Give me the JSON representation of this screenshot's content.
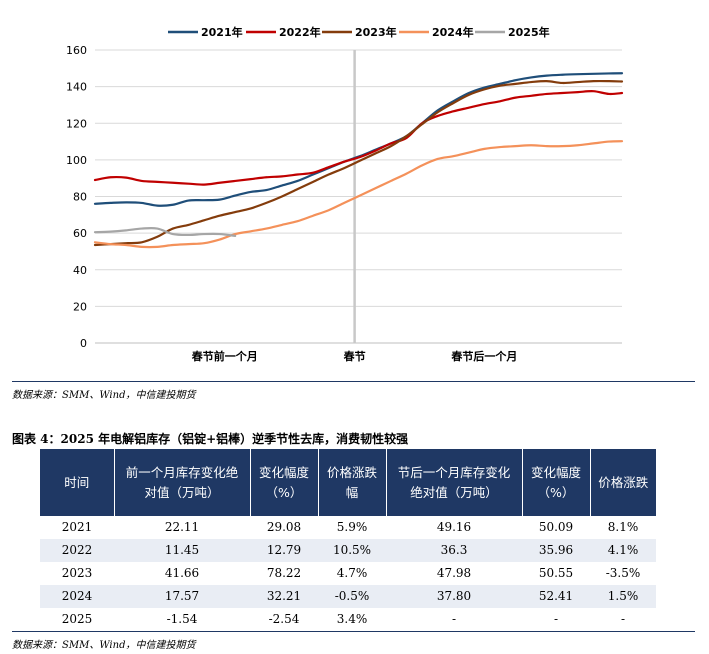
{
  "chart_data": {
    "type": "line",
    "x_labels": [
      "春节前一个月",
      "春节",
      "春节后一个月"
    ],
    "ylim": [
      0,
      160
    ],
    "yticks": [
      0,
      20,
      40,
      60,
      80,
      100,
      120,
      140,
      160
    ],
    "grid": "horizontal",
    "legend_position": "top",
    "x_note": "20 evenly spaced observations; index 0 = start of 春节前一个月, index 10 = 春节, index 20 = end of 春节后一个月",
    "series": [
      {
        "name": "2021年",
        "color": "#1f4e79",
        "x": [
          0,
          0.6,
          1.2,
          1.8,
          2.4,
          3,
          3.6,
          4.2,
          4.8,
          5.4,
          6,
          6.6,
          7.2,
          7.8,
          8.4,
          9,
          9.6,
          10.2,
          10.8,
          11.4,
          12,
          12.6,
          13.2,
          13.8,
          14.4,
          15,
          15.6,
          16.2,
          16.8,
          17.4,
          18,
          18.6,
          19.2,
          19.8,
          20.3
        ],
        "y": [
          76,
          76.5,
          76.8,
          76.5,
          75,
          75.5,
          77.8,
          78,
          78.3,
          80.5,
          82.5,
          83.5,
          86,
          88.5,
          92,
          95.5,
          99,
          102,
          105.5,
          109,
          113,
          120,
          127,
          132,
          136.5,
          139.5,
          141.5,
          143.5,
          145,
          146,
          146.5,
          146.8,
          147,
          147.2,
          147.3
        ]
      },
      {
        "name": "2022年",
        "color": "#c00000",
        "x": [
          0,
          0.6,
          1.2,
          1.8,
          2.4,
          3,
          3.6,
          4.2,
          4.8,
          5.4,
          6,
          6.6,
          7.2,
          7.8,
          8.4,
          9,
          9.6,
          10.2,
          10.8,
          11.4,
          12,
          12.6,
          13.2,
          13.8,
          14.4,
          15,
          15.6,
          16.2,
          16.8,
          17.4,
          18,
          18.6,
          19.2,
          19.8,
          20.3
        ],
        "y": [
          89,
          90.5,
          90.3,
          88.5,
          88,
          87.5,
          87,
          86.5,
          87.5,
          88.5,
          89.5,
          90.5,
          91,
          92,
          93,
          96,
          99,
          101.5,
          105,
          109,
          112,
          120,
          124,
          126.5,
          128.5,
          130.5,
          132,
          134,
          135,
          136,
          136.5,
          137,
          137.5,
          136,
          136.5
        ]
      },
      {
        "name": "2023年",
        "color": "#843c0c",
        "x": [
          0,
          0.6,
          1.2,
          1.8,
          2.4,
          3,
          3.6,
          4.2,
          4.8,
          5.4,
          6,
          6.6,
          7.2,
          7.8,
          8.4,
          9,
          9.6,
          10.2,
          10.8,
          11.4,
          12,
          12.6,
          13.2,
          13.8,
          14.4,
          15,
          15.6,
          16.2,
          16.8,
          17.4,
          18,
          18.6,
          19.2,
          19.8,
          20.3
        ],
        "y": [
          53.5,
          54,
          54.5,
          55,
          58,
          62.5,
          64.5,
          67,
          69.5,
          71.5,
          73.5,
          76.5,
          80,
          84,
          88,
          92,
          95.5,
          99.5,
          103.5,
          107.5,
          113,
          119.5,
          126,
          131,
          135.5,
          138.5,
          140.5,
          141.5,
          142.5,
          143,
          142,
          142.5,
          143,
          143,
          142.8
        ]
      },
      {
        "name": "2024年",
        "color": "#f4915a",
        "x": [
          0,
          0.6,
          1.2,
          1.8,
          2.4,
          3,
          3.6,
          4.2,
          4.8,
          5.4,
          6,
          6.6,
          7.2,
          7.8,
          8.4,
          9,
          9.6,
          10.2,
          10.8,
          11.4,
          12,
          12.6,
          13.2,
          13.8,
          14.4,
          15,
          15.6,
          16.2,
          16.8,
          17.4,
          18,
          18.6,
          19.2,
          19.8,
          20.3
        ],
        "y": [
          55,
          54,
          53.5,
          52.5,
          52.5,
          53.5,
          54,
          54.5,
          56.5,
          59.5,
          61,
          62.5,
          64.5,
          66.5,
          69.5,
          72.5,
          76.5,
          80.5,
          84.5,
          88.5,
          92.5,
          97,
          100.5,
          102,
          104,
          106,
          107,
          107.5,
          108,
          107.5,
          107.5,
          108,
          109,
          110,
          110.2
        ]
      },
      {
        "name": "2025年",
        "color": "#a6a6a6",
        "x": [
          0,
          0.6,
          1.2,
          1.8,
          2.4,
          3,
          3.6,
          4.2,
          4.8,
          5.4
        ],
        "y": [
          60.5,
          60.8,
          61.5,
          62.5,
          62.5,
          59.5,
          59,
          59.5,
          59.5,
          58.5
        ]
      }
    ]
  },
  "source_top": "数据来源：SMM、Wind，中信建投期货",
  "figure_title": "图表 4：2025 年电解铝库存（铝锭+铝棒）逆季节性去库，消费韧性较强",
  "table": {
    "headers": [
      "时间",
      "前一个月库存变化绝对值（万吨）",
      "变化幅度（%）",
      "价格涨跌幅",
      "节后一个月库存变化绝对值（万吨）",
      "变化幅度（%）",
      "价格涨跌"
    ],
    "rows": [
      [
        "2021",
        "22.11",
        "29.08",
        "5.9%",
        "49.16",
        "50.09",
        "8.1%"
      ],
      [
        "2022",
        "11.45",
        "12.79",
        "10.5%",
        "36.3",
        "35.96",
        "4.1%"
      ],
      [
        "2023",
        "41.66",
        "78.22",
        "4.7%",
        "47.98",
        "50.55",
        "-3.5%"
      ],
      [
        "2024",
        "17.57",
        "32.21",
        "-0.5%",
        "37.80",
        "52.41",
        "1.5%"
      ],
      [
        "2025",
        "-1.54",
        "-2.54",
        "3.4%",
        "-",
        "-",
        "-"
      ]
    ]
  },
  "source_bottom": "数据来源：SMM、Wind，中信建投期货"
}
